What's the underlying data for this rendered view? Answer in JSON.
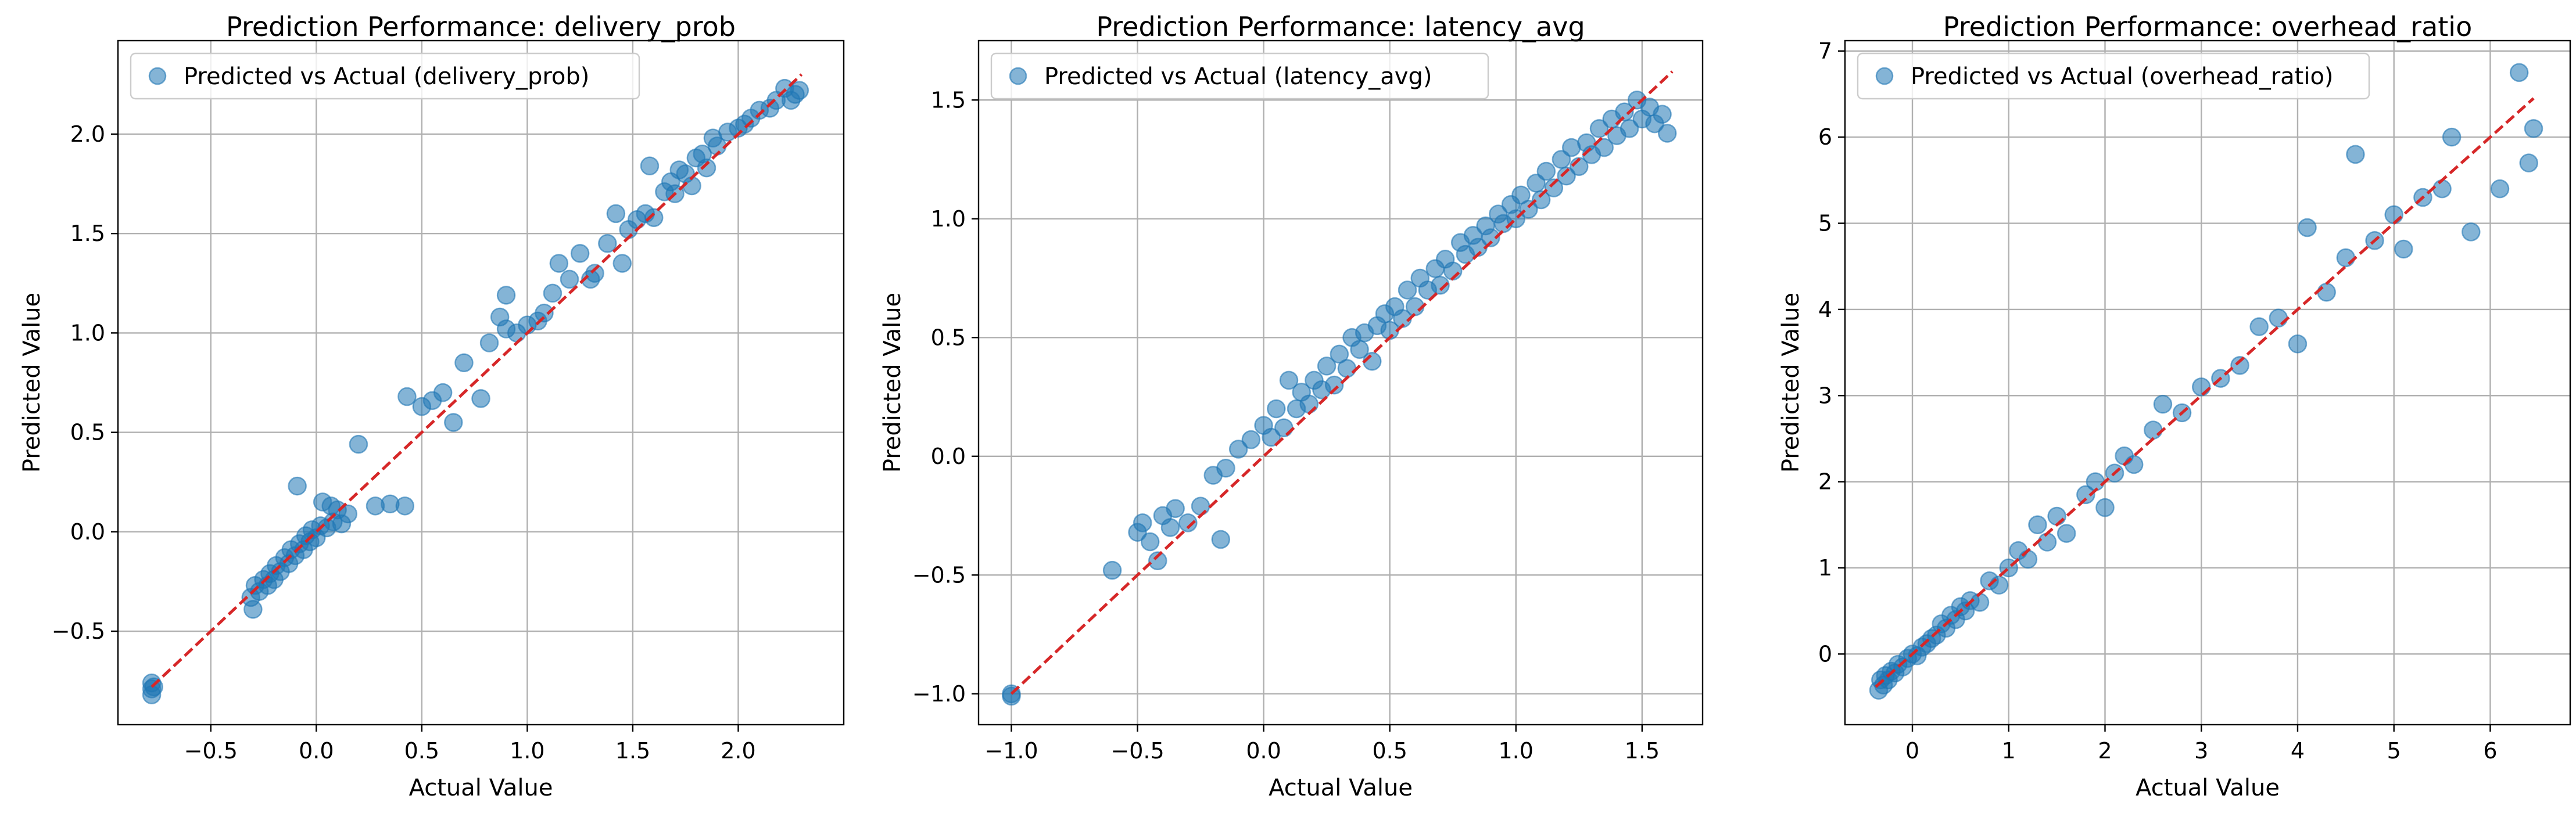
{
  "chart_data": [
    {
      "type": "scatter",
      "title": "Prediction Performance: delivery_prob",
      "xlabel": "Actual Value",
      "ylabel": "Predicted Value",
      "xlim": [
        -0.94,
        2.5
      ],
      "ylim": [
        -0.97,
        2.47
      ],
      "xticks": [
        -0.5,
        0.0,
        0.5,
        1.0,
        1.5,
        2.0
      ],
      "xtick_labels": [
        "−0.5",
        "0.0",
        "0.5",
        "1.0",
        "1.5",
        "2.0"
      ],
      "yticks": [
        -0.5,
        0.0,
        0.5,
        1.0,
        1.5,
        2.0
      ],
      "ytick_labels": [
        "−0.5",
        "0.0",
        "0.5",
        "1.0",
        "1.5",
        "2.0"
      ],
      "grid": true,
      "legend_position": "top-left",
      "series": [
        {
          "name": "Predicted vs Actual (delivery_prob)",
          "color": "#1f77b4",
          "points": [
            [
              -0.78,
              -0.76
            ],
            [
              -0.78,
              -0.79
            ],
            [
              -0.78,
              -0.82
            ],
            [
              -0.77,
              -0.78
            ],
            [
              -0.31,
              -0.33
            ],
            [
              -0.3,
              -0.39
            ],
            [
              -0.29,
              -0.27
            ],
            [
              -0.27,
              -0.3
            ],
            [
              -0.25,
              -0.24
            ],
            [
              -0.23,
              -0.27
            ],
            [
              -0.22,
              -0.21
            ],
            [
              -0.2,
              -0.24
            ],
            [
              -0.19,
              -0.17
            ],
            [
              -0.17,
              -0.2
            ],
            [
              -0.15,
              -0.13
            ],
            [
              -0.13,
              -0.16
            ],
            [
              -0.12,
              -0.09
            ],
            [
              -0.1,
              -0.12
            ],
            [
              -0.09,
              0.23
            ],
            [
              -0.08,
              -0.06
            ],
            [
              -0.06,
              -0.09
            ],
            [
              -0.05,
              -0.02
            ],
            [
              -0.03,
              -0.05
            ],
            [
              -0.02,
              0.01
            ],
            [
              0.0,
              -0.03
            ],
            [
              0.02,
              0.03
            ],
            [
              0.03,
              0.15
            ],
            [
              0.05,
              0.02
            ],
            [
              0.07,
              0.13
            ],
            [
              0.08,
              0.05
            ],
            [
              0.1,
              0.11
            ],
            [
              0.12,
              0.04
            ],
            [
              0.15,
              0.09
            ],
            [
              0.2,
              0.44
            ],
            [
              0.28,
              0.13
            ],
            [
              0.35,
              0.14
            ],
            [
              0.42,
              0.13
            ],
            [
              0.43,
              0.68
            ],
            [
              0.5,
              0.63
            ],
            [
              0.55,
              0.66
            ],
            [
              0.6,
              0.7
            ],
            [
              0.65,
              0.55
            ],
            [
              0.7,
              0.85
            ],
            [
              0.78,
              0.67
            ],
            [
              0.82,
              0.95
            ],
            [
              0.87,
              1.08
            ],
            [
              0.9,
              1.02
            ],
            [
              0.9,
              1.19
            ],
            [
              0.95,
              1.0
            ],
            [
              1.0,
              1.04
            ],
            [
              1.05,
              1.06
            ],
            [
              1.08,
              1.1
            ],
            [
              1.12,
              1.2
            ],
            [
              1.15,
              1.35
            ],
            [
              1.2,
              1.27
            ],
            [
              1.25,
              1.4
            ],
            [
              1.3,
              1.27
            ],
            [
              1.32,
              1.3
            ],
            [
              1.38,
              1.45
            ],
            [
              1.42,
              1.6
            ],
            [
              1.45,
              1.35
            ],
            [
              1.48,
              1.52
            ],
            [
              1.52,
              1.57
            ],
            [
              1.56,
              1.6
            ],
            [
              1.58,
              1.84
            ],
            [
              1.6,
              1.58
            ],
            [
              1.65,
              1.71
            ],
            [
              1.68,
              1.76
            ],
            [
              1.7,
              1.7
            ],
            [
              1.72,
              1.82
            ],
            [
              1.75,
              1.8
            ],
            [
              1.78,
              1.74
            ],
            [
              1.8,
              1.88
            ],
            [
              1.83,
              1.9
            ],
            [
              1.85,
              1.83
            ],
            [
              1.88,
              1.98
            ],
            [
              1.9,
              1.94
            ],
            [
              1.95,
              2.01
            ],
            [
              2.0,
              2.03
            ],
            [
              2.03,
              2.05
            ],
            [
              2.06,
              2.08
            ],
            [
              2.1,
              2.12
            ],
            [
              2.15,
              2.13
            ],
            [
              2.18,
              2.17
            ],
            [
              2.22,
              2.23
            ],
            [
              2.25,
              2.17
            ],
            [
              2.27,
              2.2
            ],
            [
              2.29,
              2.22
            ]
          ]
        }
      ],
      "reference_line": {
        "color": "#d62728",
        "style": "dashed",
        "from": [
          -0.78,
          -0.78
        ],
        "to": [
          2.3,
          2.3
        ]
      }
    },
    {
      "type": "scatter",
      "title": "Prediction Performance: latency_avg",
      "xlabel": "Actual Value",
      "ylabel": "Predicted Value",
      "xlim": [
        -1.13,
        1.74
      ],
      "ylim": [
        -1.13,
        1.75
      ],
      "xticks": [
        -1.0,
        -0.5,
        0.0,
        0.5,
        1.0,
        1.5
      ],
      "xtick_labels": [
        "−1.0",
        "−0.5",
        "0.0",
        "0.5",
        "1.0",
        "1.5"
      ],
      "yticks": [
        -1.0,
        -0.5,
        0.0,
        0.5,
        1.0,
        1.5
      ],
      "ytick_labels": [
        "−1.0",
        "−0.5",
        "0.0",
        "0.5",
        "1.0",
        "1.5"
      ],
      "grid": true,
      "legend_position": "top-left",
      "series": [
        {
          "name": "Predicted vs Actual (latency_avg)",
          "color": "#1f77b4",
          "points": [
            [
              -1.0,
              -1.0
            ],
            [
              -1.0,
              -1.01
            ],
            [
              -0.6,
              -0.48
            ],
            [
              -0.5,
              -0.32
            ],
            [
              -0.48,
              -0.28
            ],
            [
              -0.45,
              -0.36
            ],
            [
              -0.42,
              -0.44
            ],
            [
              -0.4,
              -0.25
            ],
            [
              -0.37,
              -0.3
            ],
            [
              -0.35,
              -0.22
            ],
            [
              -0.3,
              -0.28
            ],
            [
              -0.25,
              -0.21
            ],
            [
              -0.2,
              -0.08
            ],
            [
              -0.17,
              -0.35
            ],
            [
              -0.15,
              -0.05
            ],
            [
              -0.1,
              0.03
            ],
            [
              -0.05,
              0.07
            ],
            [
              0.0,
              0.13
            ],
            [
              0.03,
              0.08
            ],
            [
              0.05,
              0.2
            ],
            [
              0.08,
              0.12
            ],
            [
              0.1,
              0.32
            ],
            [
              0.13,
              0.2
            ],
            [
              0.15,
              0.27
            ],
            [
              0.18,
              0.22
            ],
            [
              0.2,
              0.32
            ],
            [
              0.23,
              0.28
            ],
            [
              0.25,
              0.38
            ],
            [
              0.28,
              0.3
            ],
            [
              0.3,
              0.43
            ],
            [
              0.33,
              0.37
            ],
            [
              0.35,
              0.5
            ],
            [
              0.38,
              0.45
            ],
            [
              0.4,
              0.52
            ],
            [
              0.43,
              0.4
            ],
            [
              0.45,
              0.55
            ],
            [
              0.48,
              0.6
            ],
            [
              0.5,
              0.53
            ],
            [
              0.52,
              0.63
            ],
            [
              0.55,
              0.58
            ],
            [
              0.57,
              0.7
            ],
            [
              0.6,
              0.63
            ],
            [
              0.62,
              0.75
            ],
            [
              0.65,
              0.7
            ],
            [
              0.68,
              0.79
            ],
            [
              0.7,
              0.72
            ],
            [
              0.72,
              0.83
            ],
            [
              0.75,
              0.78
            ],
            [
              0.78,
              0.9
            ],
            [
              0.8,
              0.85
            ],
            [
              0.83,
              0.93
            ],
            [
              0.85,
              0.88
            ],
            [
              0.88,
              0.97
            ],
            [
              0.9,
              0.92
            ],
            [
              0.93,
              1.02
            ],
            [
              0.95,
              0.98
            ],
            [
              0.98,
              1.06
            ],
            [
              1.0,
              1.0
            ],
            [
              1.02,
              1.1
            ],
            [
              1.05,
              1.04
            ],
            [
              1.08,
              1.15
            ],
            [
              1.1,
              1.08
            ],
            [
              1.12,
              1.2
            ],
            [
              1.15,
              1.13
            ],
            [
              1.18,
              1.25
            ],
            [
              1.2,
              1.18
            ],
            [
              1.22,
              1.3
            ],
            [
              1.25,
              1.22
            ],
            [
              1.28,
              1.32
            ],
            [
              1.3,
              1.27
            ],
            [
              1.33,
              1.38
            ],
            [
              1.35,
              1.3
            ],
            [
              1.38,
              1.42
            ],
            [
              1.4,
              1.35
            ],
            [
              1.43,
              1.45
            ],
            [
              1.45,
              1.38
            ],
            [
              1.48,
              1.5
            ],
            [
              1.5,
              1.42
            ],
            [
              1.53,
              1.47
            ],
            [
              1.55,
              1.4
            ],
            [
              1.58,
              1.44
            ],
            [
              1.6,
              1.36
            ]
          ]
        }
      ],
      "reference_line": {
        "color": "#d62728",
        "style": "dashed",
        "from": [
          -1.0,
          -1.0
        ],
        "to": [
          1.62,
          1.62
        ]
      }
    },
    {
      "type": "scatter",
      "title": "Prediction Performance: overhead_ratio",
      "xlabel": "Actual Value",
      "ylabel": "Predicted Value",
      "xlim": [
        -0.7,
        6.83
      ],
      "ylim": [
        -0.82,
        7.12
      ],
      "xticks": [
        0,
        1,
        2,
        3,
        4,
        5,
        6
      ],
      "xtick_labels": [
        "0",
        "1",
        "2",
        "3",
        "4",
        "5",
        "6"
      ],
      "yticks": [
        0,
        1,
        2,
        3,
        4,
        5,
        6,
        7
      ],
      "ytick_labels": [
        "0",
        "1",
        "2",
        "3",
        "4",
        "5",
        "6",
        "7"
      ],
      "grid": true,
      "legend_position": "top-left",
      "series": [
        {
          "name": "Predicted vs Actual (overhead_ratio)",
          "color": "#1f77b4",
          "points": [
            [
              -0.35,
              -0.42
            ],
            [
              -0.33,
              -0.3
            ],
            [
              -0.3,
              -0.36
            ],
            [
              -0.28,
              -0.25
            ],
            [
              -0.25,
              -0.3
            ],
            [
              -0.22,
              -0.2
            ],
            [
              -0.18,
              -0.22
            ],
            [
              -0.15,
              -0.12
            ],
            [
              -0.1,
              -0.15
            ],
            [
              -0.05,
              -0.05
            ],
            [
              0.0,
              0.0
            ],
            [
              0.05,
              -0.02
            ],
            [
              0.1,
              0.08
            ],
            [
              0.15,
              0.12
            ],
            [
              0.2,
              0.18
            ],
            [
              0.25,
              0.22
            ],
            [
              0.3,
              0.35
            ],
            [
              0.35,
              0.3
            ],
            [
              0.4,
              0.45
            ],
            [
              0.45,
              0.4
            ],
            [
              0.5,
              0.55
            ],
            [
              0.55,
              0.5
            ],
            [
              0.6,
              0.62
            ],
            [
              0.7,
              0.6
            ],
            [
              0.8,
              0.85
            ],
            [
              0.9,
              0.8
            ],
            [
              1.0,
              1.0
            ],
            [
              1.1,
              1.2
            ],
            [
              1.2,
              1.1
            ],
            [
              1.3,
              1.5
            ],
            [
              1.4,
              1.3
            ],
            [
              1.5,
              1.6
            ],
            [
              1.6,
              1.4
            ],
            [
              1.8,
              1.85
            ],
            [
              1.9,
              2.0
            ],
            [
              2.0,
              1.7
            ],
            [
              2.1,
              2.1
            ],
            [
              2.2,
              2.3
            ],
            [
              2.3,
              2.2
            ],
            [
              2.5,
              2.6
            ],
            [
              2.6,
              2.9
            ],
            [
              2.8,
              2.8
            ],
            [
              3.0,
              3.1
            ],
            [
              3.2,
              3.2
            ],
            [
              3.4,
              3.35
            ],
            [
              3.6,
              3.8
            ],
            [
              3.8,
              3.9
            ],
            [
              4.0,
              3.6
            ],
            [
              4.1,
              4.95
            ],
            [
              4.3,
              4.2
            ],
            [
              4.5,
              4.6
            ],
            [
              4.6,
              5.8
            ],
            [
              4.8,
              4.8
            ],
            [
              5.0,
              5.1
            ],
            [
              5.1,
              4.7
            ],
            [
              5.3,
              5.3
            ],
            [
              5.5,
              5.4
            ],
            [
              5.6,
              6.0
            ],
            [
              5.8,
              4.9
            ],
            [
              6.1,
              5.4
            ],
            [
              6.3,
              6.75
            ],
            [
              6.4,
              5.7
            ],
            [
              6.45,
              6.1
            ]
          ]
        }
      ],
      "reference_line": {
        "color": "#d62728",
        "style": "dashed",
        "from": [
          -0.38,
          -0.38
        ],
        "to": [
          6.45,
          6.45
        ]
      }
    }
  ]
}
